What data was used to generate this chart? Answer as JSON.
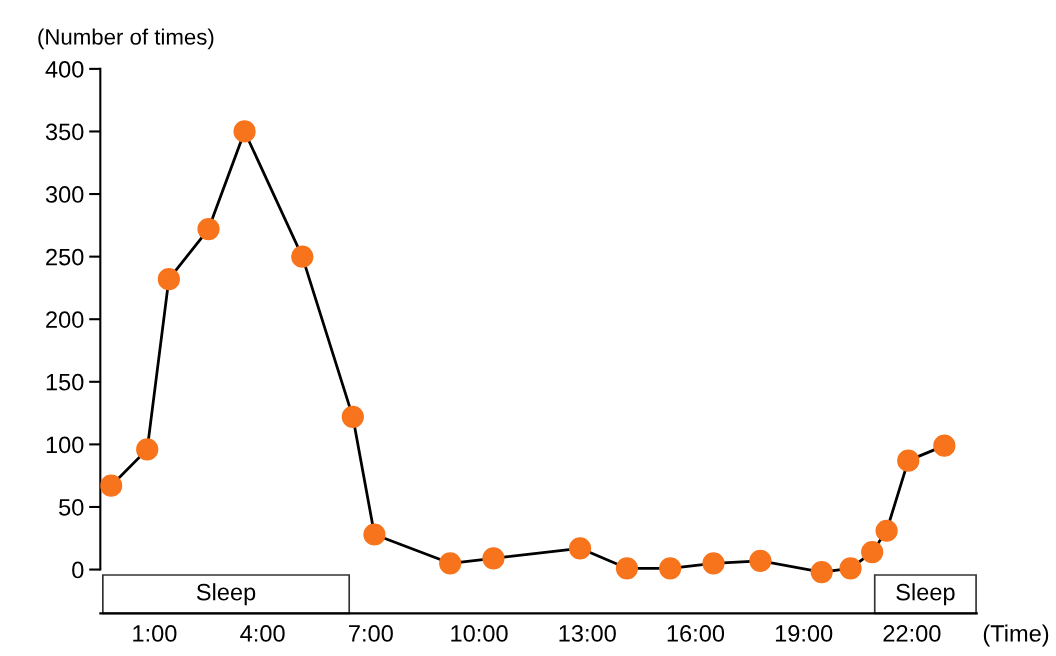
{
  "chart_data": {
    "type": "line",
    "ylabel": "(Number of times)",
    "xlabel": "(Time)",
    "x": [
      -0.2,
      0.8,
      1.4,
      2.5,
      3.5,
      5.1,
      6.5,
      7.1,
      9.2,
      10.4,
      12.8,
      14.1,
      15.3,
      16.5,
      17.8,
      19.5,
      20.3,
      20.9,
      21.3,
      21.9,
      22.9
    ],
    "series": [
      {
        "color": "#f7741c",
        "values": [
          67,
          96,
          232,
          272,
          350,
          250,
          122,
          28,
          5,
          9,
          17,
          1,
          1,
          5,
          7,
          -2,
          1,
          14,
          31,
          87,
          99
        ]
      }
    ],
    "xlim": [
      -0.5,
      23.8
    ],
    "ylim": [
      -35,
      400
    ],
    "xticks": [
      {
        "value": 1,
        "label": "1:00"
      },
      {
        "value": 4,
        "label": "4:00"
      },
      {
        "value": 7,
        "label": "7:00"
      },
      {
        "value": 10,
        "label": "10:00"
      },
      {
        "value": 13,
        "label": "13:00"
      },
      {
        "value": 16,
        "label": "16:00"
      },
      {
        "value": 19,
        "label": "19:00"
      },
      {
        "value": 22,
        "label": "22:00"
      }
    ],
    "yticks": [
      0,
      50,
      100,
      150,
      200,
      250,
      300,
      350,
      400
    ],
    "bands": [
      {
        "axis": "x",
        "from": -0.43,
        "to": 6.4,
        "label": "Sleep"
      },
      {
        "axis": "x",
        "from": 20.97,
        "to": 23.78,
        "label": "Sleep"
      }
    ],
    "marker": "circle",
    "line_style": "solid",
    "grid": false,
    "legend": false
  }
}
